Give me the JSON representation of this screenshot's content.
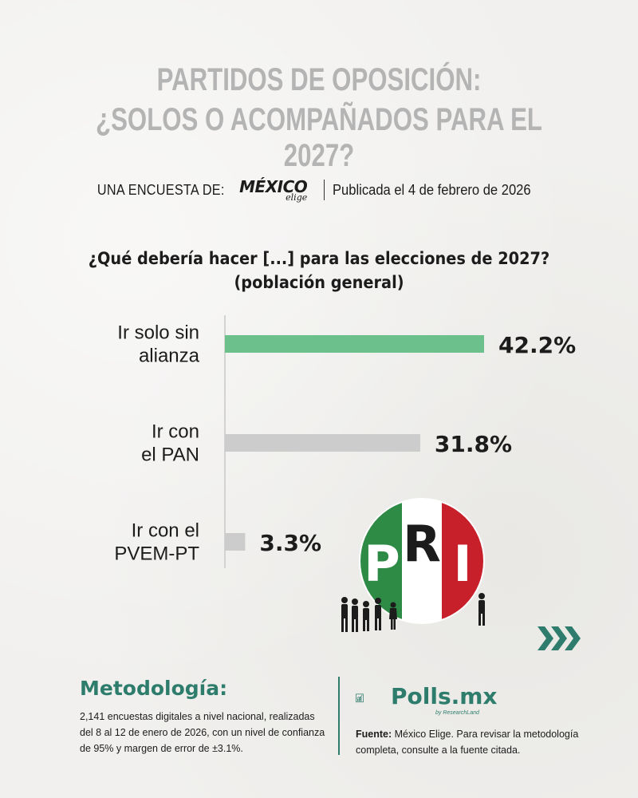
{
  "header": {
    "title_line1": "PARTIDOS DE OPOSICIÓN:",
    "title_line2": "¿SOLOS O ACOMPAÑADOS PARA EL 2027?",
    "byline_prefix": "UNA ENCUESTA DE:",
    "brand_word": "MÉXICO",
    "brand_sub": "elige",
    "published": "Publicada el 4 de febrero de 2026"
  },
  "chart_data": {
    "type": "bar",
    "orientation": "horizontal",
    "title": "¿Qué debería hacer [...] para las elecciones de 2027?",
    "subtitle": "(población general)",
    "categories": [
      [
        "Ir solo sin",
        "alianza"
      ],
      [
        "Ir con",
        "el PAN"
      ],
      [
        "Ir con el",
        "PVEM-PT"
      ]
    ],
    "values": [
      42.2,
      31.8,
      3.3
    ],
    "value_labels": [
      "42.2%",
      "31.8%",
      "3.3%"
    ],
    "unit": "%",
    "xlim": [
      0,
      42.2
    ],
    "colors": [
      "#6cc08b",
      "#cccccc",
      "#cccccc"
    ],
    "grid": false,
    "legend": "none"
  },
  "logo": {
    "letters": [
      "P",
      "R",
      "I"
    ],
    "colors": {
      "green": "#2e8b46",
      "white": "#ffffff",
      "red": "#c8202b"
    }
  },
  "methodology": {
    "title": "Metodología:",
    "text": "2,141 encuestas digitales a nivel nacional, realizadas del 8 al 12 de enero de 2026, con un nivel de confianza de 95% y margen de error de ±3.1%."
  },
  "source": {
    "brand": "Polls.mx",
    "brand_sub": "by ResearchLand",
    "label": "Fuente:",
    "text": "México Elige. Para revisar la metodología completa, consulte a la fuente citada."
  },
  "accent_color": "#2e7d6c",
  "icons": [
    "next-arrows-icon",
    "polls-chart-icon",
    "pri-logo",
    "people-silhouettes-icon"
  ]
}
